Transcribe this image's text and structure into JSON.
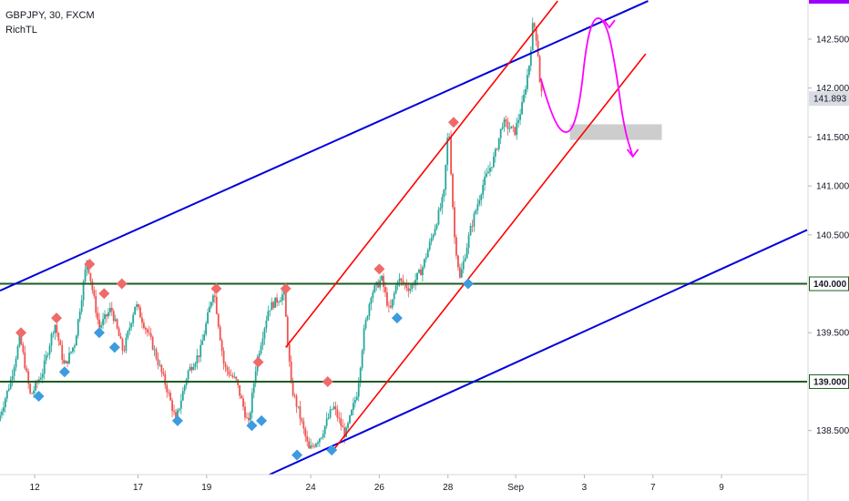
{
  "legend": {
    "symbol_line": "GBPJPY, 30, FXCM",
    "indicator": "RichTL"
  },
  "colors": {
    "background": "#ffffff",
    "candle_up": "#26a69a",
    "candle_down": "#ef5350",
    "channel_outer": "#0000dd",
    "channel_inner": "#ff0000",
    "horizontal_level": "#1b5e20",
    "projection": "#ff00ff",
    "zone": "#c8c8c8",
    "pivot_high": "#f06a6a",
    "pivot_low": "#3d9be0",
    "axis_marker": "#9c00ff"
  },
  "chart_data": {
    "type": "candlestick",
    "symbol": "GBPJPY",
    "timeframe": "30",
    "source": "FXCM",
    "y_range": [
      138.05,
      142.9
    ],
    "x_range": [
      0,
      100
    ],
    "y_ticks": [
      "142.500",
      "142.000",
      "141.500",
      "141.000",
      "140.500",
      "139.500",
      "138.500"
    ],
    "x_ticks": [
      {
        "label": "12",
        "x": 4.3
      },
      {
        "label": "17",
        "x": 17.1
      },
      {
        "label": "19",
        "x": 25.6
      },
      {
        "label": "24",
        "x": 38.5
      },
      {
        "label": "26",
        "x": 47.0
      },
      {
        "label": "28",
        "x": 55.5
      },
      {
        "label": "Sep",
        "x": 63.9
      },
      {
        "label": "3",
        "x": 72.4
      },
      {
        "label": "7",
        "x": 80.9
      },
      {
        "label": "9",
        "x": 89.4
      }
    ],
    "current_price": {
      "label": "141.893",
      "value": 141.893
    },
    "levels": [
      {
        "label": "140.000",
        "value": 140.0
      },
      {
        "label": "139.000",
        "value": 139.0
      }
    ],
    "price_path": [
      [
        0,
        138.6
      ],
      [
        1.5,
        139.0
      ],
      [
        2.7,
        139.45
      ],
      [
        4.0,
        138.85
      ],
      [
        5.5,
        139.1
      ],
      [
        7.0,
        139.6
      ],
      [
        8.2,
        139.15
      ],
      [
        9.5,
        139.4
      ],
      [
        11.0,
        140.25
      ],
      [
        12.5,
        139.55
      ],
      [
        14.0,
        139.75
      ],
      [
        15.5,
        139.3
      ],
      [
        17.0,
        139.8
      ],
      [
        19.0,
        139.4
      ],
      [
        21.0,
        138.9
      ],
      [
        22.0,
        138.6
      ],
      [
        23.5,
        139.1
      ],
      [
        25.0,
        139.3
      ],
      [
        26.7,
        139.95
      ],
      [
        28.0,
        139.15
      ],
      [
        29.5,
        139.0
      ],
      [
        31.0,
        138.55
      ],
      [
        32.0,
        139.2
      ],
      [
        33.5,
        139.75
      ],
      [
        35.4,
        139.9
      ],
      [
        36.3,
        138.95
      ],
      [
        37.2,
        138.7
      ],
      [
        38.5,
        138.3
      ],
      [
        40.0,
        138.45
      ],
      [
        41.5,
        138.75
      ],
      [
        43.0,
        138.45
      ],
      [
        44.5,
        138.9
      ],
      [
        45.3,
        139.5
      ],
      [
        46.2,
        139.9
      ],
      [
        47.5,
        140.05
      ],
      [
        48.5,
        139.7
      ],
      [
        49.5,
        140.05
      ],
      [
        51.0,
        139.95
      ],
      [
        52.5,
        140.15
      ],
      [
        54.0,
        140.55
      ],
      [
        55.2,
        140.9
      ],
      [
        55.8,
        141.65
      ],
      [
        56.5,
        140.5
      ],
      [
        57.2,
        140.05
      ],
      [
        58.5,
        140.55
      ],
      [
        60.0,
        141.0
      ],
      [
        61.5,
        141.3
      ],
      [
        62.5,
        141.65
      ],
      [
        64.0,
        141.55
      ],
      [
        65.0,
        141.85
      ],
      [
        65.8,
        142.25
      ],
      [
        66.3,
        142.7
      ],
      [
        66.8,
        142.45
      ],
      [
        67.2,
        141.95
      ]
    ],
    "pivot_highs": [
      [
        2.6,
        139.5
      ],
      [
        7.0,
        139.65
      ],
      [
        11.1,
        140.2
      ],
      [
        12.9,
        139.9
      ],
      [
        15.1,
        140.0
      ],
      [
        26.8,
        139.95
      ],
      [
        32.0,
        139.2
      ],
      [
        35.4,
        139.95
      ],
      [
        40.6,
        139.0
      ],
      [
        47.0,
        140.15
      ],
      [
        56.2,
        141.65
      ]
    ],
    "pivot_lows": [
      [
        4.8,
        138.85
      ],
      [
        8.0,
        139.1
      ],
      [
        12.3,
        139.5
      ],
      [
        14.2,
        139.35
      ],
      [
        22.0,
        138.6
      ],
      [
        31.2,
        138.55
      ],
      [
        32.4,
        138.6
      ],
      [
        36.8,
        138.25
      ],
      [
        41.1,
        138.3
      ],
      [
        49.2,
        139.65
      ],
      [
        58.0,
        140.0
      ]
    ],
    "channel_outer_upper": [
      [
        0,
        139.93
      ],
      [
        80.3,
        142.89
      ]
    ],
    "channel_outer_lower": [
      [
        33.4,
        138.05
      ],
      [
        100,
        140.55
      ]
    ],
    "channel_inner_upper": [
      [
        35.4,
        139.35
      ],
      [
        69.1,
        142.89
      ]
    ],
    "channel_inner_lower": [
      [
        41.3,
        138.3
      ],
      [
        80.0,
        142.35
      ]
    ],
    "zone": {
      "x": [
        70.6,
        82.0
      ],
      "y": [
        141.47,
        141.63
      ]
    },
    "projection_path": [
      [
        67.0,
        142.1
      ],
      [
        68.5,
        141.65
      ],
      [
        70.5,
        141.5
      ],
      [
        71.8,
        141.8
      ],
      [
        72.7,
        142.5
      ],
      [
        73.8,
        142.75
      ],
      [
        75.2,
        142.65
      ],
      [
        76.3,
        142.2
      ],
      [
        77.3,
        141.6
      ],
      [
        78.4,
        141.3
      ]
    ]
  }
}
